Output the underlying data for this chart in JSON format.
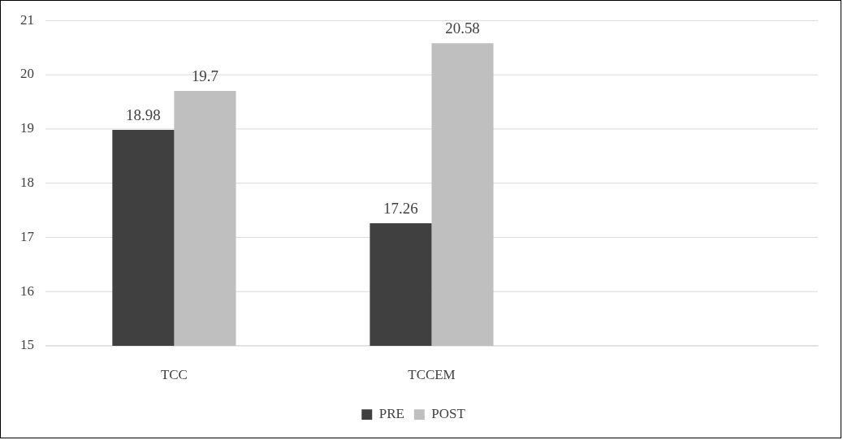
{
  "chart_data": {
    "type": "bar",
    "categories": [
      "TCC",
      "TCCEM",
      null
    ],
    "series": [
      {
        "name": "PRE",
        "color": "#404040",
        "values": [
          18.98,
          17.26,
          null
        ]
      },
      {
        "name": "POST",
        "color": "#bfbfbf",
        "values": [
          19.7,
          20.58,
          null
        ]
      }
    ],
    "ylim": [
      15,
      21
    ],
    "yticks": [
      15,
      16,
      17,
      18,
      19,
      20,
      21
    ],
    "grid": "y",
    "legend": "bottom",
    "data_labels": true
  }
}
